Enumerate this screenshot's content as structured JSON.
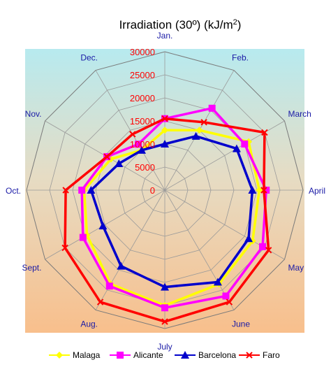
{
  "chart_data": {
    "type": "radar",
    "title": "Irradiation (30º) (kJ/m²)",
    "categories": [
      "Jan.",
      "Feb.",
      "March",
      "April",
      "May",
      "June",
      "July",
      "Aug.",
      "Sept.",
      "Oct.",
      "Nov.",
      "Dec."
    ],
    "radial_ticks": [
      "0",
      "5000",
      "10000",
      "15000",
      "20000",
      "25000",
      "30000"
    ],
    "rlim": [
      0,
      30000
    ],
    "grid": true,
    "legend_position": "bottom",
    "series": [
      {
        "name": "Malaga",
        "color": "#ffff00",
        "marker": "diamond",
        "values": [
          13000,
          15000,
          21000,
          20500,
          22000,
          23500,
          25000,
          23500,
          19500,
          17500,
          13500,
          10000
        ]
      },
      {
        "name": "Alicante",
        "color": "#ff00ff",
        "marker": "square",
        "values": [
          15500,
          20500,
          20000,
          22000,
          24500,
          26500,
          25500,
          24000,
          20500,
          18000,
          14500,
          11500
        ]
      },
      {
        "name": "Barcelona",
        "color": "#0000cc",
        "marker": "triangle",
        "values": [
          10000,
          13500,
          18000,
          19000,
          21000,
          23000,
          21000,
          19000,
          15500,
          16000,
          11500,
          10000
        ]
      },
      {
        "name": "Faro",
        "color": "#ff0000",
        "marker": "x",
        "values": [
          15500,
          17000,
          25000,
          21500,
          26000,
          28000,
          28500,
          28000,
          25000,
          21500,
          14500,
          14000
        ]
      }
    ]
  }
}
